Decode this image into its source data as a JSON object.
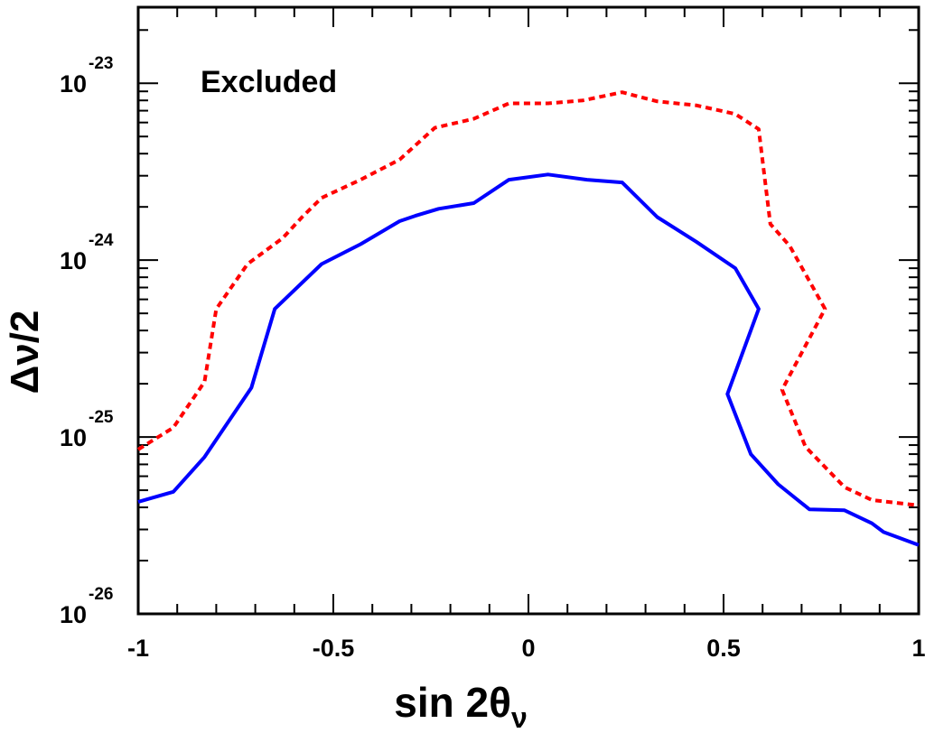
{
  "chart_data": {
    "type": "line",
    "title": "",
    "xlabel": "sin 2θ",
    "xlabel_subscript": "ν",
    "ylabel": "Δν/2",
    "xlim": [
      -1,
      1
    ],
    "ylim": [
      1e-26,
      1e-23
    ],
    "yscale": "log",
    "grid": false,
    "legend": "none",
    "annotation": "Excluded",
    "x_ticks": [
      {
        "value": -1,
        "label": "-1"
      },
      {
        "value": -0.5,
        "label": "-0.5"
      },
      {
        "value": 0,
        "label": "0"
      },
      {
        "value": 0.5,
        "label": "0.5"
      },
      {
        "value": 1,
        "label": "1"
      }
    ],
    "y_ticks": [
      {
        "exp": -26,
        "base": "10",
        "exponent": "-26"
      },
      {
        "exp": -25,
        "base": "10",
        "exponent": "-25"
      },
      {
        "exp": -24,
        "base": "10",
        "exponent": "-24"
      },
      {
        "exp": -23,
        "base": "10",
        "exponent": "-23"
      }
    ],
    "series": [
      {
        "style": "solid",
        "color": "#0000ff",
        "points": [
          [
            -1.0,
            4.3e-26
          ],
          [
            -0.91,
            4.9e-26
          ],
          [
            -0.83,
            7.7e-26
          ],
          [
            -0.71,
            1.9e-25
          ],
          [
            -0.65,
            5.3e-25
          ],
          [
            -0.53,
            9.5e-25
          ],
          [
            -0.43,
            1.23e-24
          ],
          [
            -0.33,
            1.66e-24
          ],
          [
            -0.29,
            1.78e-24
          ],
          [
            -0.23,
            1.95e-24
          ],
          [
            -0.14,
            2.1e-24
          ],
          [
            -0.05,
            2.85e-24
          ],
          [
            0.05,
            3.05e-24
          ],
          [
            0.15,
            2.85e-24
          ],
          [
            0.24,
            2.75e-24
          ],
          [
            0.33,
            1.75e-24
          ],
          [
            0.43,
            1.27e-24
          ],
          [
            0.53,
            9e-25
          ],
          [
            0.59,
            5.3e-25
          ],
          [
            0.51,
            1.75e-25
          ],
          [
            0.57,
            8e-26
          ],
          [
            0.64,
            5.4e-26
          ],
          [
            0.72,
            3.9e-26
          ],
          [
            0.81,
            3.85e-26
          ],
          [
            0.88,
            3.25e-26
          ],
          [
            0.91,
            2.9e-26
          ],
          [
            1.0,
            2.45e-26
          ]
        ]
      },
      {
        "style": "dotted",
        "color": "#ff0000",
        "points": [
          [
            -1.0,
            8.5e-26
          ],
          [
            -0.91,
            1.13e-25
          ],
          [
            -0.83,
            2.05e-25
          ],
          [
            -0.8,
            5.3e-25
          ],
          [
            -0.72,
            9.5e-25
          ],
          [
            -0.63,
            1.33e-24
          ],
          [
            -0.58,
            1.75e-24
          ],
          [
            -0.53,
            2.25e-24
          ],
          [
            -0.43,
            2.85e-24
          ],
          [
            -0.33,
            3.7e-24
          ],
          [
            -0.24,
            5.6e-24
          ],
          [
            -0.14,
            6.3e-24
          ],
          [
            -0.05,
            7.7e-24
          ],
          [
            0.05,
            7.7e-24
          ],
          [
            0.14,
            8e-24
          ],
          [
            0.24,
            8.9e-24
          ],
          [
            0.33,
            7.9e-24
          ],
          [
            0.43,
            7.5e-24
          ],
          [
            0.53,
            6.7e-24
          ],
          [
            0.59,
            5.5e-24
          ],
          [
            0.62,
            1.6e-24
          ],
          [
            0.67,
            1.2e-24
          ],
          [
            0.76,
            5.3e-25
          ],
          [
            0.65,
            1.85e-25
          ],
          [
            0.71,
            8.8e-26
          ],
          [
            0.81,
            5.2e-26
          ],
          [
            0.88,
            4.4e-26
          ],
          [
            1.0,
            4.1e-26
          ]
        ]
      }
    ]
  }
}
